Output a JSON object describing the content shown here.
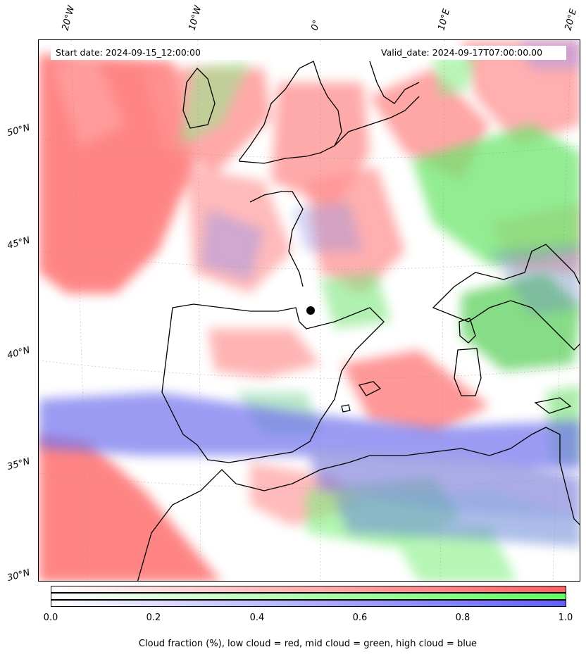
{
  "header": {
    "start_date": "Start date: 2024-09-15_12:00:00",
    "valid_date": "Valid_date: 2024-09-17T07:00:00.00"
  },
  "axes": {
    "longitude_ticks": [
      "20°W",
      "10°W",
      "0°",
      "10°E",
      "20°E"
    ],
    "latitude_ticks": [
      "50°N",
      "45°N",
      "40°N",
      "35°N",
      "30°N"
    ]
  },
  "colorbar": {
    "ticks": [
      "0.0",
      "0.2",
      "0.4",
      "0.6",
      "0.8",
      "1.0"
    ],
    "range": [
      0.0,
      1.0
    ],
    "channels": [
      {
        "name": "low cloud",
        "color": "#ff6060"
      },
      {
        "name": "mid cloud",
        "color": "#60ff60"
      },
      {
        "name": "high cloud",
        "color": "#6060ff"
      }
    ],
    "label": "Cloud fraction (%), low cloud = red, mid cloud = green, high cloud = blue"
  },
  "map": {
    "region": "Western Europe / Iberia / Western Mediterranean",
    "marker": "black-dot"
  }
}
